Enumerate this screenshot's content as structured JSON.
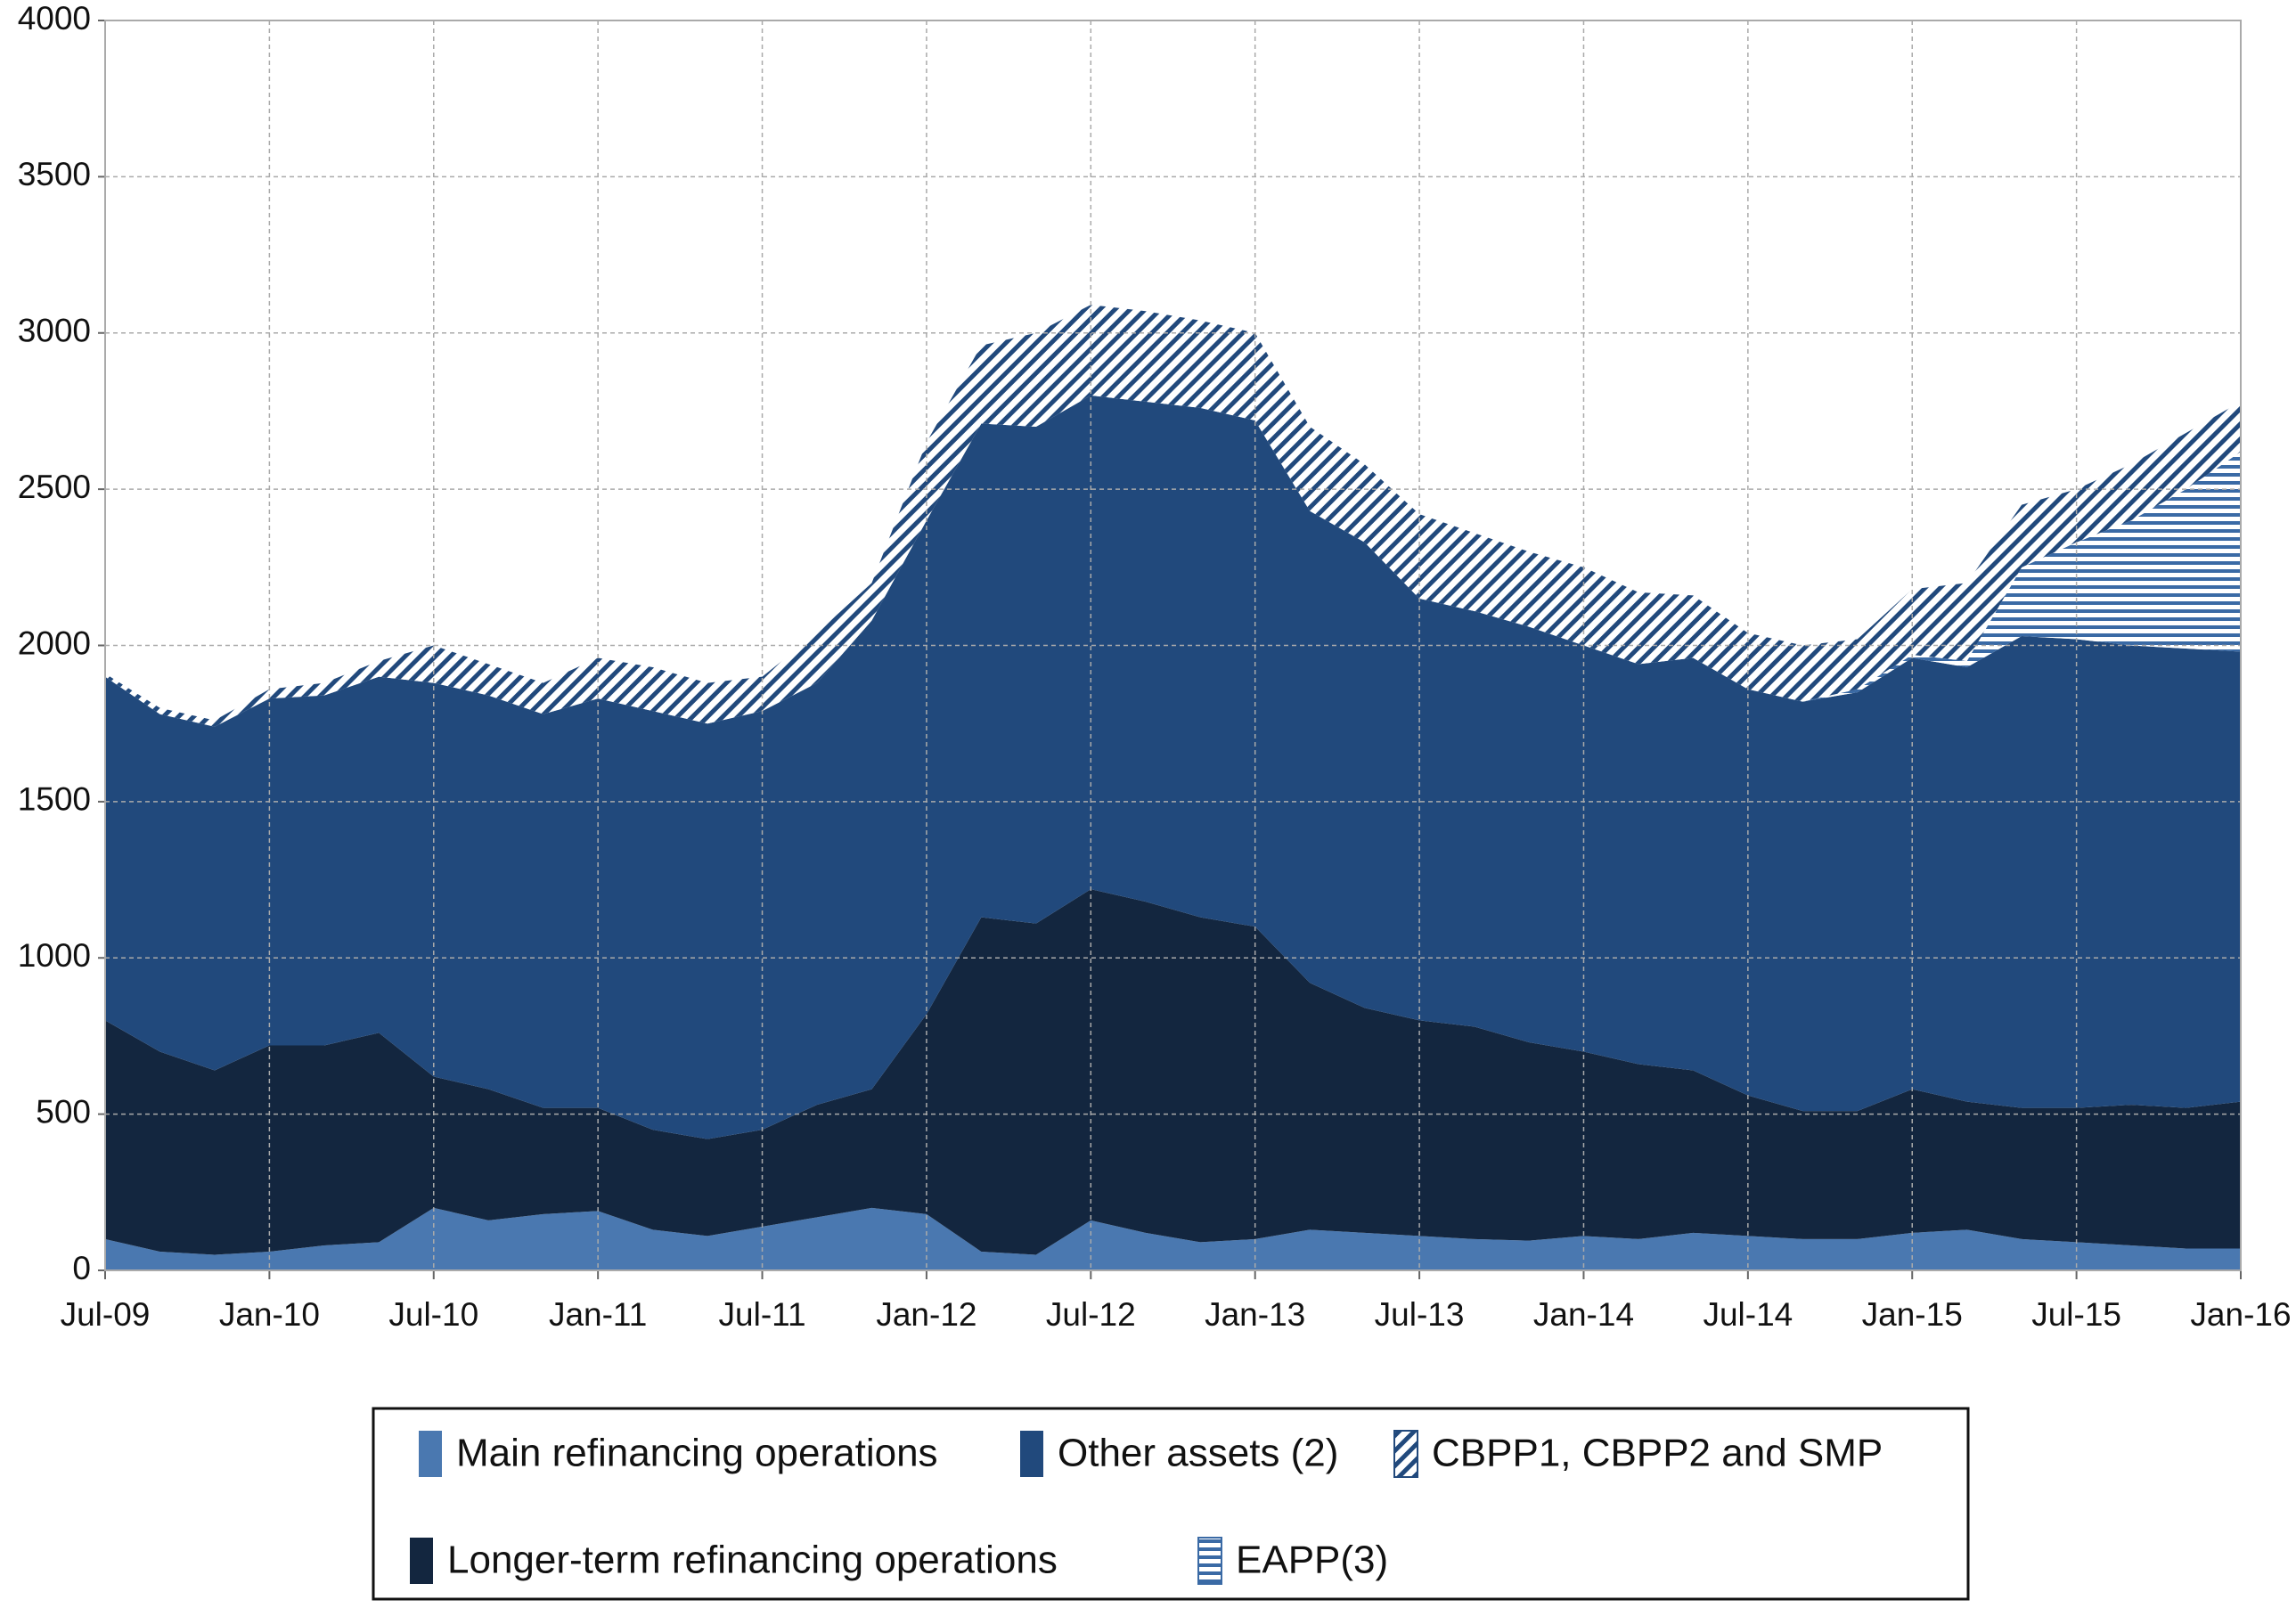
{
  "chart_data": {
    "type": "stacked_area",
    "x": [
      "2009-07",
      "2009-09",
      "2009-11",
      "2010-01",
      "2010-03",
      "2010-05",
      "2010-07",
      "2010-09",
      "2010-11",
      "2011-01",
      "2011-03",
      "2011-05",
      "2011-07",
      "2011-09",
      "2011-11",
      "2012-01",
      "2012-03",
      "2012-05",
      "2012-07",
      "2012-09",
      "2012-11",
      "2013-01",
      "2013-03",
      "2013-05",
      "2013-07",
      "2013-09",
      "2013-11",
      "2014-01",
      "2014-03",
      "2014-05",
      "2014-07",
      "2014-09",
      "2014-11",
      "2015-01",
      "2015-03",
      "2015-05",
      "2015-07",
      "2015-09",
      "2015-11",
      "2016-01"
    ],
    "series": [
      {
        "name": "Main refinancing operations",
        "color": "#4a78b0",
        "pattern": "solid",
        "values": [
          100,
          60,
          50,
          60,
          80,
          90,
          200,
          160,
          180,
          190,
          130,
          110,
          140,
          170,
          200,
          180,
          60,
          50,
          160,
          120,
          90,
          100,
          130,
          120,
          110,
          100,
          95,
          110,
          100,
          120,
          110,
          100,
          100,
          120,
          130,
          100,
          90,
          80,
          70,
          70
        ]
      },
      {
        "name": "Longer-term refinancing operations",
        "color": "#13263f",
        "pattern": "solid",
        "values": [
          700,
          640,
          590,
          660,
          640,
          670,
          420,
          420,
          340,
          330,
          320,
          310,
          310,
          360,
          380,
          640,
          1070,
          1060,
          1060,
          1060,
          1040,
          1000,
          790,
          720,
          690,
          680,
          635,
          590,
          560,
          520,
          450,
          410,
          410,
          460,
          410,
          420,
          430,
          450,
          450,
          470
        ]
      },
      {
        "name": "Other assets (2)",
        "color": "#21497c",
        "pattern": "solid",
        "values": [
          1100,
          1080,
          1100,
          1110,
          1120,
          1140,
          1260,
          1260,
          1260,
          1310,
          1340,
          1330,
          1340,
          1350,
          1500,
          1580,
          1580,
          1590,
          1580,
          1600,
          1630,
          1620,
          1510,
          1490,
          1350,
          1330,
          1330,
          1300,
          1280,
          1320,
          1300,
          1310,
          1340,
          1380,
          1390,
          1510,
          1500,
          1470,
          1470,
          1440
        ]
      },
      {
        "name": "EAPP(3)",
        "color": "#3a6aa5",
        "pattern": "horizontal",
        "values": [
          0,
          0,
          0,
          0,
          0,
          0,
          0,
          0,
          0,
          0,
          0,
          0,
          0,
          0,
          0,
          0,
          0,
          0,
          0,
          0,
          0,
          0,
          0,
          0,
          0,
          0,
          0,
          0,
          0,
          0,
          0,
          0,
          10,
          10,
          20,
          220,
          310,
          400,
          510,
          640
        ]
      },
      {
        "name": "CBPP1, CBPP2 and SMP",
        "color": "#21497c",
        "pattern": "diagonal",
        "values": [
          10,
          20,
          20,
          30,
          40,
          50,
          120,
          100,
          100,
          130,
          140,
          130,
          110,
          160,
          120,
          250,
          250,
          300,
          290,
          290,
          280,
          280,
          270,
          250,
          270,
          250,
          240,
          250,
          230,
          200,
          180,
          180,
          160,
          210,
          250,
          200,
          170,
          180,
          180,
          160
        ]
      }
    ],
    "xlim": [
      "2009-07",
      "2016-01"
    ],
    "xticks": [
      {
        "value": "2009-07",
        "label": "Jul-09"
      },
      {
        "value": "2010-01",
        "label": "Jan-10"
      },
      {
        "value": "2010-07",
        "label": "Jul-10"
      },
      {
        "value": "2011-01",
        "label": "Jan-11"
      },
      {
        "value": "2011-07",
        "label": "Jul-11"
      },
      {
        "value": "2012-01",
        "label": "Jan-12"
      },
      {
        "value": "2012-07",
        "label": "Jul-12"
      },
      {
        "value": "2013-01",
        "label": "Jan-13"
      },
      {
        "value": "2013-07",
        "label": "Jul-13"
      },
      {
        "value": "2014-01",
        "label": "Jan-14"
      },
      {
        "value": "2014-07",
        "label": "Jul-14"
      },
      {
        "value": "2015-01",
        "label": "Jan-15"
      },
      {
        "value": "2015-07",
        "label": "Jul-15"
      },
      {
        "value": "2016-01",
        "label": "Jan-16"
      }
    ],
    "ylim": [
      0,
      4000
    ],
    "yticks": [
      0,
      500,
      1000,
      1500,
      2000,
      2500,
      3000,
      3500,
      4000
    ],
    "grid": true
  }
}
